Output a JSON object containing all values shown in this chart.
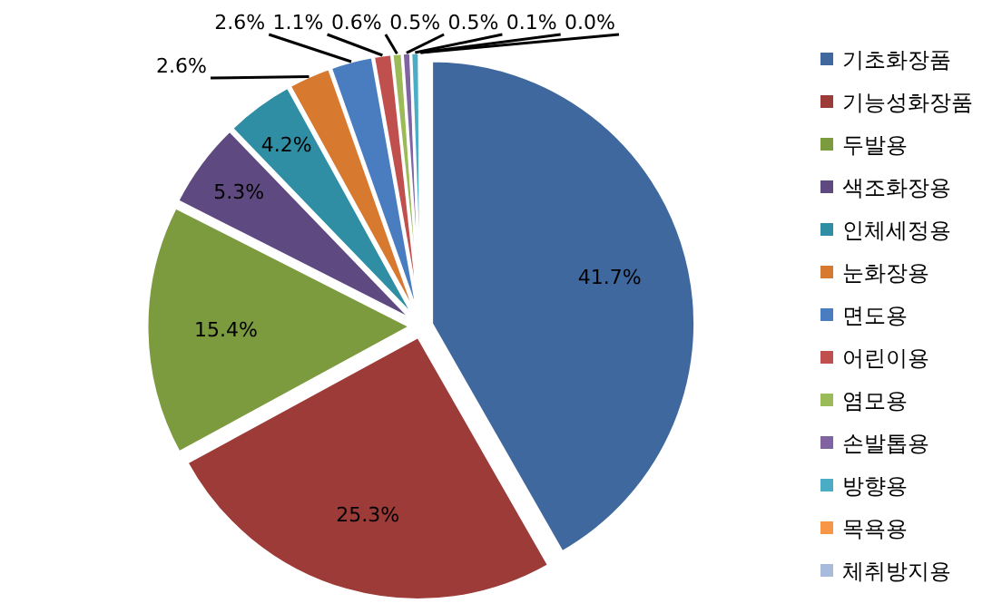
{
  "chart_data": {
    "type": "pie",
    "categories": [
      "기초화장품",
      "기능성화장품",
      "두발용",
      "색조화장용",
      "인체세정용",
      "눈화장용",
      "면도용",
      "어린이용",
      "염모용",
      "손발톱용",
      "방향용",
      "목욕용",
      "체취방지용"
    ],
    "values": [
      41.7,
      25.3,
      15.4,
      5.3,
      4.2,
      2.6,
      2.6,
      1.1,
      0.6,
      0.5,
      0.5,
      0.1,
      0.0
    ],
    "colors": [
      "#3f689e",
      "#9c3b38",
      "#7c9a3e",
      "#5e4a80",
      "#2f8ea3",
      "#d77a30",
      "#4a7cc0",
      "#c0504d",
      "#9bbb59",
      "#8064a2",
      "#4bacc6",
      "#f79646",
      "#a9bbdc"
    ],
    "value_labels": [
      "41.7%",
      "25.3%",
      "15.4%",
      "5.3%",
      "4.2%",
      "2.6%",
      "2.6%",
      "1.1%",
      "0.6%",
      "0.5%",
      "0.5%",
      "0.1%",
      "0.0%"
    ],
    "legend": "right"
  }
}
